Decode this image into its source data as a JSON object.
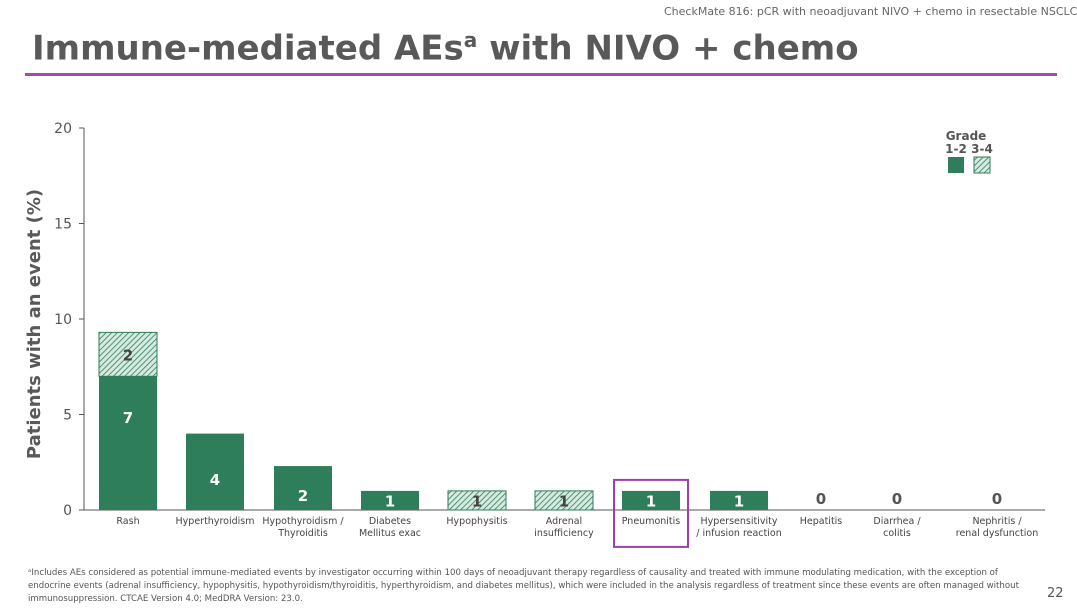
{
  "header": {
    "note": "CheckMate 816: pCR with neoadjuvant NIVO + chemo in resectable NSCLC",
    "title": "Immune-mediated AEs",
    "title_sup": "a",
    "title_rest": " with NIVO + chemo"
  },
  "chart_data": {
    "type": "bar",
    "stacked": true,
    "title": "Immune-mediated AEs with NIVO + chemo",
    "ylabel": "Patients with an event (%)",
    "ylim": [
      0,
      20
    ],
    "yticks": [
      0,
      5,
      10,
      15,
      20
    ],
    "categories": [
      [
        "Rash"
      ],
      [
        "Hyperthyroidism"
      ],
      [
        "Hypothyroidism /",
        "Thyroiditis"
      ],
      [
        "Diabetes",
        "Mellitus exac"
      ],
      [
        "Hypophysitis"
      ],
      [
        "Adrenal",
        "insufficiency"
      ],
      [
        "Pneumonitis"
      ],
      [
        "Hypersensitivity",
        "/ infusion reaction"
      ],
      [
        "Hepatitis"
      ],
      [
        "Diarrhea /",
        "colitis"
      ],
      [
        "Nephritis /",
        "renal dysfunction"
      ]
    ],
    "series": [
      {
        "name": "1-2",
        "fill": "solid",
        "values": [
          7,
          4,
          2.3,
          1,
          0,
          0,
          1,
          1,
          0,
          0,
          0
        ]
      },
      {
        "name": "3-4",
        "fill": "hatched",
        "values": [
          2.3,
          0,
          0,
          0,
          1,
          1,
          0,
          0,
          0,
          0,
          0
        ]
      }
    ],
    "data_labels": [
      [
        "7",
        "2"
      ],
      [
        "4"
      ],
      [
        "2"
      ],
      [
        "1"
      ],
      [
        "1"
      ],
      [
        "1"
      ],
      [
        "1"
      ],
      [
        "1"
      ],
      [
        "0"
      ],
      [
        "0"
      ],
      [
        "0"
      ]
    ],
    "legend": {
      "title": "Grade",
      "position": "top-right",
      "entries": [
        "1-2",
        "3-4"
      ]
    },
    "highlighted_category": "Pneumonitis",
    "colors": {
      "solid": "#2e7d5b",
      "hatch_bg": "#d6eadf",
      "highlight": "#9b3fb0",
      "axis": "#555555"
    }
  },
  "footnote": "ᵃIncludes AEs considered as potential immune-mediated events by investigator occurring within 100 days of neoadjuvant therapy regardless of causality and treated with immune modulating medication, with the exception of endocrine events (adrenal insufficiency, hypophysitis, hypothyroidism/thyroiditis, hyperthyroidism, and diabetes mellitus), which were included in the analysis regardless of treatment since these events are often managed without immunosuppression. CTCAE Version 4.0; MedDRA Version: 23.0.",
  "page_number": "22"
}
